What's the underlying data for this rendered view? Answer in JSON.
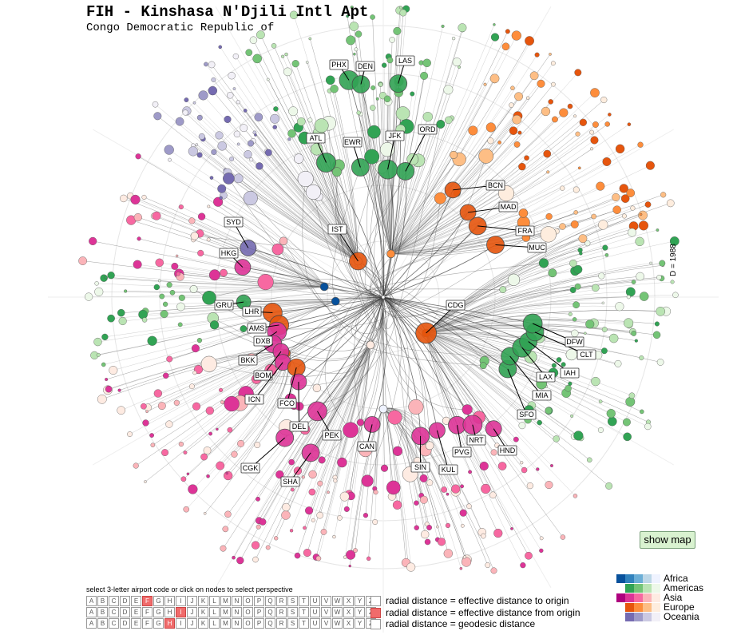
{
  "title": "FIH - Kinshasa N'Djili Intl Apt",
  "subtitle": "Congo Democratic Republic of",
  "d_label": "D = 1988",
  "show_map_label": "show map",
  "instructions": "select 3-letter airport code or click on nodes to select perspective",
  "alphabet": [
    "A",
    "B",
    "C",
    "D",
    "E",
    "F",
    "G",
    "H",
    "I",
    "J",
    "K",
    "L",
    "M",
    "N",
    "O",
    "P",
    "Q",
    "R",
    "S",
    "T",
    "U",
    "V",
    "W",
    "X",
    "Y",
    "Z"
  ],
  "code_selection": [
    "F",
    "I",
    "H"
  ],
  "radial_options": [
    {
      "label": "radial distance = effective distance to origin",
      "selected": false
    },
    {
      "label": "radial distance = effective distance from origin",
      "selected": true
    },
    {
      "label": "radial distance = geodesic distance",
      "selected": false
    }
  ],
  "legend": [
    {
      "name": "Africa",
      "colors": [
        "#08519c",
        "#3182bd",
        "#6baed6",
        "#bdd7e7",
        "#eff3ff"
      ]
    },
    {
      "name": "Americas",
      "colors": [
        "#ffffff",
        "#31a354",
        "#74c476",
        "#bae4b3",
        "#edf8e9"
      ]
    },
    {
      "name": "Asia",
      "colors": [
        "#ae017e",
        "#dd3497",
        "#f768a1",
        "#fbb4b9",
        "#feebe2"
      ]
    },
    {
      "name": "Europe",
      "colors": [
        "#ffffff",
        "#e6550d",
        "#fd8d3c",
        "#fdbe85",
        "#feedde"
      ]
    },
    {
      "name": "Oceania",
      "colors": [
        "#ffffff",
        "#756bb1",
        "#9e9ac8",
        "#cbc9e2",
        "#f2f0f7"
      ]
    }
  ],
  "airports": [
    {
      "code": "PHX",
      "region": "Americas",
      "size": 12,
      "angle": -99,
      "r": 275,
      "lx": 413,
      "ly": 75
    },
    {
      "code": "DEN",
      "region": "Americas",
      "size": 11,
      "angle": -96,
      "r": 268,
      "lx": 446,
      "ly": 77
    },
    {
      "code": "LAS",
      "region": "Americas",
      "size": 11,
      "angle": -86,
      "r": 268,
      "lx": 496,
      "ly": 70
    },
    {
      "code": "ATL",
      "region": "Americas",
      "size": 12,
      "angle": -113,
      "r": 183,
      "lx": 384,
      "ly": 167
    },
    {
      "code": "EWR",
      "region": "Americas",
      "size": 11,
      "angle": -100,
      "r": 165,
      "lx": 430,
      "ly": 172
    },
    {
      "code": "JFK",
      "region": "Americas",
      "size": 12,
      "angle": -88,
      "r": 160,
      "lx": 483,
      "ly": 164
    },
    {
      "code": "ORD",
      "region": "Americas",
      "size": 11,
      "angle": -80,
      "r": 160,
      "lx": 524,
      "ly": 156
    },
    {
      "code": "BCN",
      "region": "Europe",
      "size": 10,
      "angle": -57,
      "r": 160,
      "lx": 609,
      "ly": 226
    },
    {
      "code": "MAD",
      "region": "Europe",
      "size": 10,
      "angle": -45,
      "r": 150,
      "lx": 625,
      "ly": 253
    },
    {
      "code": "FRA",
      "region": "Europe",
      "size": 11,
      "angle": -37,
      "r": 148,
      "lx": 646,
      "ly": 283
    },
    {
      "code": "MUC",
      "region": "Europe",
      "size": 11,
      "angle": -25,
      "r": 155,
      "lx": 661,
      "ly": 304
    },
    {
      "code": "SYD",
      "region": "Oceania",
      "size": 10,
      "angle": -160,
      "r": 180,
      "lx": 281,
      "ly": 272
    },
    {
      "code": "HKG",
      "region": "Asia",
      "size": 10,
      "angle": -168,
      "r": 180,
      "lx": 275,
      "ly": 311
    },
    {
      "code": "IST",
      "region": "Europe",
      "size": 11,
      "angle": -125,
      "r": 55,
      "lx": 411,
      "ly": 281
    },
    {
      "code": "CDG",
      "region": "Europe",
      "size": 13,
      "angle": 40,
      "r": 70,
      "lx": 559,
      "ly": 376
    },
    {
      "code": "GRU",
      "region": "Americas",
      "size": 9,
      "angle": 178,
      "r": 175,
      "lx": 269,
      "ly": 376
    },
    {
      "code": "LHR",
      "region": "Europe",
      "size": 12,
      "angle": 172,
      "r": 140,
      "lx": 304,
      "ly": 384
    },
    {
      "code": "AMS",
      "region": "Europe",
      "size": 12,
      "angle": 165,
      "r": 135,
      "lx": 310,
      "ly": 405
    },
    {
      "code": "DXB",
      "region": "Asia",
      "size": 12,
      "angle": 162,
      "r": 140,
      "lx": 318,
      "ly": 421
    },
    {
      "code": "BKK",
      "region": "Asia",
      "size": 11,
      "angle": 157,
      "r": 150,
      "lx": 299,
      "ly": 445
    },
    {
      "code": "BOM",
      "region": "Asia",
      "size": 10,
      "angle": 152,
      "r": 145,
      "lx": 318,
      "ly": 464
    },
    {
      "code": "ICN",
      "region": "Asia",
      "size": 10,
      "angle": 147,
      "r": 150,
      "lx": 307,
      "ly": 494
    },
    {
      "code": "FCO",
      "region": "Europe",
      "size": 11,
      "angle": 141,
      "r": 140,
      "lx": 348,
      "ly": 499
    },
    {
      "code": "DEL",
      "region": "Asia",
      "size": 10,
      "angle": 135,
      "r": 150,
      "lx": 363,
      "ly": 528
    },
    {
      "code": "PEK",
      "region": "Asia",
      "size": 12,
      "angle": 120,
      "r": 165,
      "lx": 404,
      "ly": 539
    },
    {
      "code": "CGK",
      "region": "Asia",
      "size": 11,
      "angle": 125,
      "r": 215,
      "lx": 302,
      "ly": 580
    },
    {
      "code": "SHA",
      "region": "Asia",
      "size": 11,
      "angle": 115,
      "r": 215,
      "lx": 352,
      "ly": 597
    },
    {
      "code": "CAN",
      "region": "Asia",
      "size": 10,
      "angle": 95,
      "r": 160,
      "lx": 448,
      "ly": 553
    },
    {
      "code": "SIN",
      "region": "Asia",
      "size": 11,
      "angle": 75,
      "r": 180,
      "lx": 515,
      "ly": 579
    },
    {
      "code": "KUL",
      "region": "Asia",
      "size": 10,
      "angle": 68,
      "r": 180,
      "lx": 550,
      "ly": 582
    },
    {
      "code": "PVG",
      "region": "Asia",
      "size": 11,
      "angle": 60,
      "r": 185,
      "lx": 567,
      "ly": 560
    },
    {
      "code": "NRT",
      "region": "Asia",
      "size": 12,
      "angle": 55,
      "r": 195,
      "lx": 585,
      "ly": 545
    },
    {
      "code": "HND",
      "region": "Asia",
      "size": 10,
      "angle": 50,
      "r": 215,
      "lx": 624,
      "ly": 558
    },
    {
      "code": "SFO",
      "region": "Americas",
      "size": 11,
      "angle": 30,
      "r": 180,
      "lx": 648,
      "ly": 513
    },
    {
      "code": "MIA",
      "region": "Americas",
      "size": 11,
      "angle": 25,
      "r": 175,
      "lx": 667,
      "ly": 489
    },
    {
      "code": "LAX",
      "region": "Americas",
      "size": 12,
      "angle": 20,
      "r": 185,
      "lx": 672,
      "ly": 466
    },
    {
      "code": "IAH",
      "region": "Americas",
      "size": 11,
      "angle": 17,
      "r": 190,
      "lx": 702,
      "ly": 461
    },
    {
      "code": "CLT",
      "region": "Americas",
      "size": 11,
      "angle": 13,
      "r": 195,
      "lx": 723,
      "ly": 438
    },
    {
      "code": "DFW",
      "region": "Americas",
      "size": 12,
      "angle": 10,
      "r": 190,
      "lx": 708,
      "ly": 422
    }
  ]
}
